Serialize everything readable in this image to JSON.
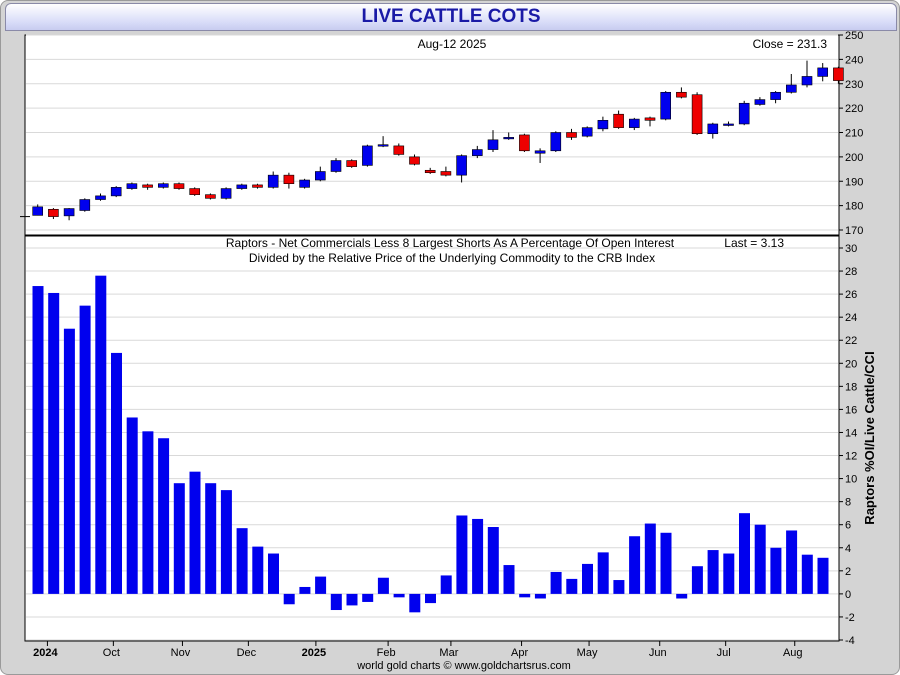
{
  "header": {
    "title": "LIVE CATTLE COTS"
  },
  "footer": {
    "credit": "world gold charts © www.goldchartsrus.com"
  },
  "colors": {
    "up": "#0000ee",
    "down": "#ee0000",
    "bar": "#0000ee",
    "grid": "#d9d9d9"
  },
  "x_axis": {
    "labels": [
      {
        "text": "2024",
        "bold": true,
        "week": 0.6
      },
      {
        "text": "Oct",
        "bold": false,
        "week": 4.8
      },
      {
        "text": "Nov",
        "bold": false,
        "week": 9.2
      },
      {
        "text": "Dec",
        "bold": false,
        "week": 13.4
      },
      {
        "text": "2025",
        "bold": true,
        "week": 17.7
      },
      {
        "text": "Feb",
        "bold": false,
        "week": 22.3
      },
      {
        "text": "Mar",
        "bold": false,
        "week": 26.3
      },
      {
        "text": "Apr",
        "bold": false,
        "week": 30.8
      },
      {
        "text": "May",
        "bold": false,
        "week": 35.1
      },
      {
        "text": "Jun",
        "bold": false,
        "week": 39.6
      },
      {
        "text": "Jul",
        "bold": false,
        "week": 43.8
      },
      {
        "text": "Aug",
        "bold": false,
        "week": 48.2
      }
    ]
  },
  "chart_data": [
    {
      "type": "candlestick",
      "date_label": "Aug-12  2025",
      "last_label": "Close = 231.3",
      "ylim": [
        170,
        250
      ],
      "yticks": [
        170,
        180,
        190,
        200,
        210,
        220,
        230,
        240,
        250
      ],
      "candles": [
        [
          175.5,
          175.8,
          175.5,
          175.8
        ],
        [
          176.0,
          179.5,
          176.0,
          180.5
        ],
        [
          178.5,
          175.5,
          174.5,
          179.0
        ],
        [
          175.8,
          178.8,
          174.0,
          179.0
        ],
        [
          178.0,
          182.5,
          177.5,
          183.0
        ],
        [
          182.5,
          184.0,
          182.0,
          185.0
        ],
        [
          184.0,
          187.5,
          183.5,
          188.0
        ],
        [
          187.0,
          189.0,
          186.5,
          189.5
        ],
        [
          188.5,
          187.5,
          186.5,
          189.0
        ],
        [
          187.5,
          189.0,
          187.0,
          189.5
        ],
        [
          189.0,
          187.0,
          186.5,
          189.5
        ],
        [
          187.0,
          184.5,
          184.0,
          187.5
        ],
        [
          184.5,
          183.0,
          182.5,
          185.0
        ],
        [
          183.0,
          187.0,
          182.5,
          187.5
        ],
        [
          187.0,
          188.5,
          186.5,
          189.0
        ],
        [
          188.5,
          187.5,
          187.0,
          189.0
        ],
        [
          187.5,
          192.5,
          187.0,
          194.0
        ],
        [
          192.5,
          189.0,
          187.0,
          193.5
        ],
        [
          187.5,
          190.5,
          187.0,
          191.0
        ],
        [
          190.5,
          194.0,
          190.0,
          196.0
        ],
        [
          194.0,
          198.5,
          193.5,
          199.5
        ],
        [
          198.5,
          196.0,
          195.5,
          199.0
        ],
        [
          196.5,
          204.5,
          196.0,
          205.0
        ],
        [
          204.5,
          205.0,
          204.0,
          208.5
        ],
        [
          204.5,
          201.0,
          200.5,
          205.5
        ],
        [
          200.0,
          197.0,
          196.5,
          201.0
        ],
        [
          194.5,
          193.5,
          193.0,
          195.5
        ],
        [
          194.0,
          192.5,
          192.0,
          196.0
        ],
        [
          192.5,
          200.5,
          189.5,
          201.0
        ],
        [
          200.5,
          203.0,
          199.5,
          204.5
        ],
        [
          203.0,
          207.0,
          202.0,
          211.0
        ],
        [
          207.5,
          208.0,
          207.0,
          210.0
        ],
        [
          209.0,
          202.5,
          202.0,
          209.5
        ],
        [
          201.5,
          202.5,
          197.5,
          203.5
        ],
        [
          202.5,
          210.0,
          202.0,
          210.5
        ],
        [
          210.0,
          208.0,
          207.0,
          211.5
        ],
        [
          208.5,
          212.0,
          208.0,
          212.5
        ],
        [
          211.5,
          215.0,
          210.5,
          216.5
        ],
        [
          217.5,
          212.0,
          211.5,
          219.0
        ],
        [
          212.0,
          215.5,
          211.0,
          216.0
        ],
        [
          216.0,
          215.0,
          212.5,
          216.5
        ],
        [
          215.5,
          226.5,
          215.0,
          227.0
        ],
        [
          226.5,
          224.5,
          224.0,
          228.5
        ],
        [
          225.5,
          209.5,
          209.0,
          226.5
        ],
        [
          209.5,
          213.5,
          207.5,
          214.0
        ],
        [
          213.5,
          213.5,
          212.5,
          214.5
        ],
        [
          213.5,
          222.0,
          213.0,
          223.0
        ],
        [
          221.5,
          223.5,
          221.0,
          224.5
        ],
        [
          223.5,
          226.5,
          222.0,
          227.0
        ],
        [
          226.5,
          229.5,
          226.0,
          234.0
        ],
        [
          229.5,
          233.0,
          228.5,
          239.5
        ],
        [
          233.0,
          236.5,
          231.0,
          238.5
        ],
        [
          236.5,
          231.3,
          230.0,
          237.0
        ]
      ]
    },
    {
      "type": "bar",
      "title": "Raptors - Net Commercials Less 8 Largest Shorts As A Percentage Of Open Interest",
      "subtitle": "Divided by the Relative Price of the Underlying Commodity to the CRB Index",
      "last_label": "Last = 3.13",
      "ylabel": "Raptors %OI/Live Cattle/CCI",
      "ylim": [
        -4,
        30
      ],
      "yticks": [
        -4,
        -2,
        0,
        2,
        4,
        6,
        8,
        10,
        12,
        14,
        16,
        18,
        20,
        22,
        24,
        26,
        28,
        30
      ],
      "values": [
        26.7,
        26.1,
        23.0,
        25.0,
        27.6,
        20.9,
        15.3,
        14.1,
        13.5,
        9.6,
        10.6,
        9.6,
        9.0,
        5.7,
        4.1,
        3.5,
        -0.9,
        0.6,
        1.5,
        -1.4,
        -1.0,
        -0.7,
        1.4,
        -0.3,
        -1.6,
        -0.8,
        1.6,
        6.8,
        6.5,
        5.8,
        2.5,
        -0.3,
        -0.4,
        1.9,
        1.3,
        2.6,
        3.6,
        1.2,
        5.0,
        6.1,
        5.3,
        -0.4,
        2.4,
        3.8,
        3.5,
        7.0,
        6.0,
        4.0,
        5.5,
        3.4,
        3.13
      ]
    }
  ]
}
